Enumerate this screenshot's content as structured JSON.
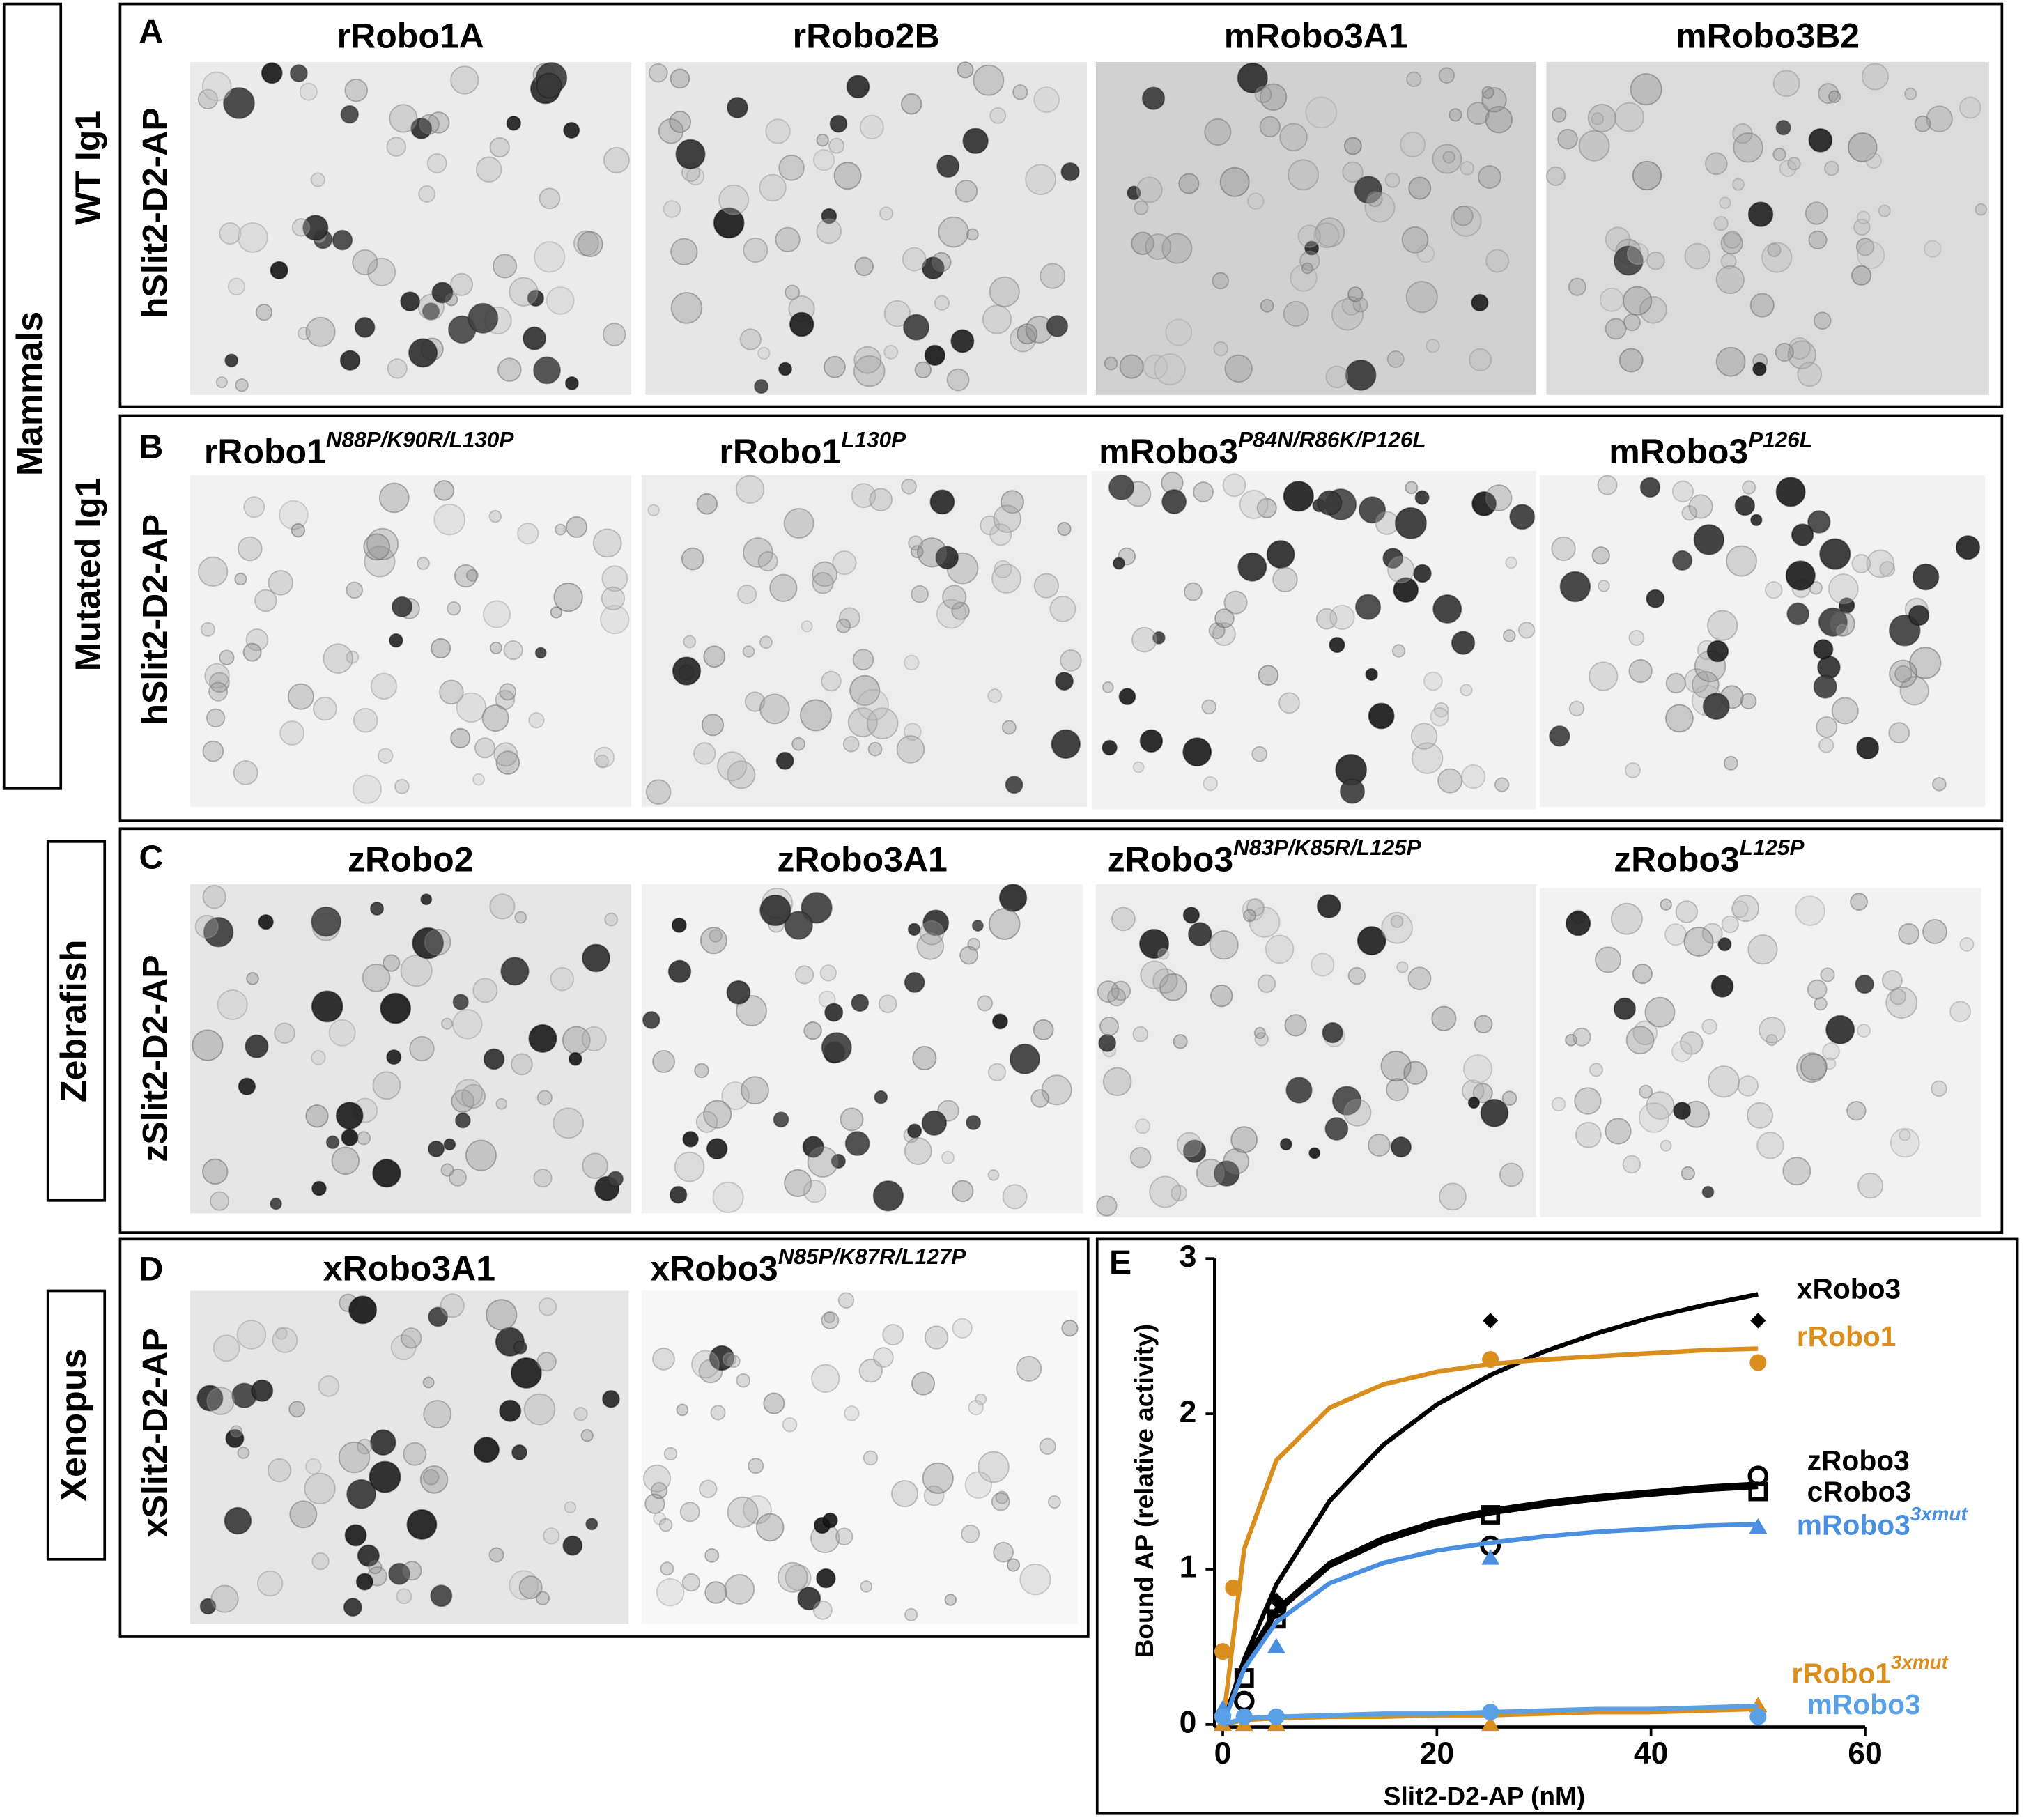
{
  "groups": [
    "Mammals",
    "Zebrafish",
    "Xenopus"
  ],
  "panels": [
    {
      "label": "A",
      "row_labels": [
        "WT Ig1",
        "hSlit2-D2-AP"
      ],
      "titles": [
        {
          "text": "rRobo1A"
        },
        {
          "text": "rRobo2B"
        },
        {
          "text": "mRobo3A1"
        },
        {
          "text": "mRobo3B2"
        }
      ]
    },
    {
      "label": "B",
      "row_labels": [
        "Mutated Ig1",
        "hSlit2-D2-AP"
      ],
      "titles": [
        {
          "text": "rRobo1",
          "sup": "N88P/K90R/L130P"
        },
        {
          "text": "rRobo1",
          "sup": "L130P"
        },
        {
          "text": "mRobo3",
          "sup": "P84N/R86K/P126L"
        },
        {
          "text": "mRobo3",
          "sup": "P126L"
        }
      ]
    },
    {
      "label": "C",
      "row_labels": [
        "zSlit2-D2-AP"
      ],
      "titles": [
        {
          "text": "zRobo2"
        },
        {
          "text": "zRobo3A1"
        },
        {
          "text": "zRobo3",
          "sup": "N83P/K85R/L125P"
        },
        {
          "text": "zRobo3",
          "sup": "L125P"
        }
      ]
    },
    {
      "label": "D",
      "row_labels": [
        "xSlit2-D2-AP"
      ],
      "titles": [
        {
          "text": "xRobo3A1"
        },
        {
          "text": "xRobo3",
          "sup": "N85P/K87R/L127P"
        }
      ]
    }
  ],
  "chart_data": {
    "type": "scatter",
    "panel_label": "E",
    "x_label": "Slit2-D2-AP (nM)",
    "y_label": "Bound AP (relative activity)",
    "xlim": [
      -1,
      60
    ],
    "ylim": [
      0,
      3
    ],
    "xticks": [
      0,
      20,
      40,
      60
    ],
    "yticks": [
      0,
      1,
      2,
      3
    ],
    "fit_x": [
      0,
      2,
      5,
      10,
      15,
      20,
      25,
      30,
      35,
      40,
      45,
      50
    ],
    "series": [
      {
        "name": "xRobo3",
        "color": "#000000",
        "marker": "diamond",
        "x": [
          5,
          25,
          50
        ],
        "y": [
          0.8,
          2.6,
          2.6
        ],
        "fit": [
          0,
          0.42,
          0.9,
          1.44,
          1.8,
          2.06,
          2.25,
          2.4,
          2.52,
          2.62,
          2.7,
          2.77
        ]
      },
      {
        "name": "rRobo1",
        "color": "#d98e1e",
        "marker": "circle",
        "x": [
          0,
          1,
          25,
          50
        ],
        "y": [
          0.47,
          0.88,
          2.35,
          2.33
        ],
        "fit": [
          0,
          1.13,
          1.7,
          2.04,
          2.19,
          2.27,
          2.32,
          2.35,
          2.37,
          2.39,
          2.41,
          2.42
        ]
      },
      {
        "name": "zRobo3",
        "color": "#000000",
        "marker": "circle-open",
        "x": [
          2,
          5,
          25,
          50
        ],
        "y": [
          0.15,
          0.75,
          1.15,
          1.6
        ],
        "fit": [
          0,
          0.4,
          0.74,
          1.04,
          1.2,
          1.31,
          1.38,
          1.43,
          1.47,
          1.5,
          1.53,
          1.55
        ]
      },
      {
        "name": "cRobo3",
        "color": "#000000",
        "marker": "square-open",
        "x": [
          2,
          5,
          25,
          50
        ],
        "y": [
          0.3,
          0.68,
          1.35,
          1.5
        ],
        "fit": [
          0,
          0.38,
          0.72,
          1.02,
          1.18,
          1.29,
          1.36,
          1.41,
          1.45,
          1.48,
          1.51,
          1.53
        ]
      },
      {
        "name": "mRobo3",
        "name_sup": "3xmut",
        "color": "#4b8fe0",
        "marker": "triangle",
        "x": [
          0,
          5,
          25,
          50
        ],
        "y": [
          0.1,
          0.5,
          1.07,
          1.27
        ],
        "fit": [
          0,
          0.36,
          0.66,
          0.91,
          1.04,
          1.12,
          1.17,
          1.21,
          1.24,
          1.26,
          1.28,
          1.29
        ]
      },
      {
        "name": "rRobo1",
        "name_sup": "3xmut",
        "color": "#d98e1e",
        "marker": "triangle",
        "x": [
          0,
          2,
          5,
          25,
          50
        ],
        "y": [
          0,
          0,
          0,
          0,
          0.12
        ],
        "fit": [
          0,
          0.03,
          0.04,
          0.05,
          0.05,
          0.06,
          0.06,
          0.07,
          0.08,
          0.08,
          0.09,
          0.1
        ]
      },
      {
        "name": "mRobo3",
        "color": "#5aa0e6",
        "marker": "circle",
        "x": [
          0,
          2,
          5,
          25,
          50
        ],
        "y": [
          0.05,
          0.05,
          0.05,
          0.08,
          0.05
        ],
        "fit": [
          0,
          0.04,
          0.05,
          0.06,
          0.07,
          0.07,
          0.08,
          0.09,
          0.1,
          0.1,
          0.11,
          0.12
        ]
      }
    ]
  }
}
